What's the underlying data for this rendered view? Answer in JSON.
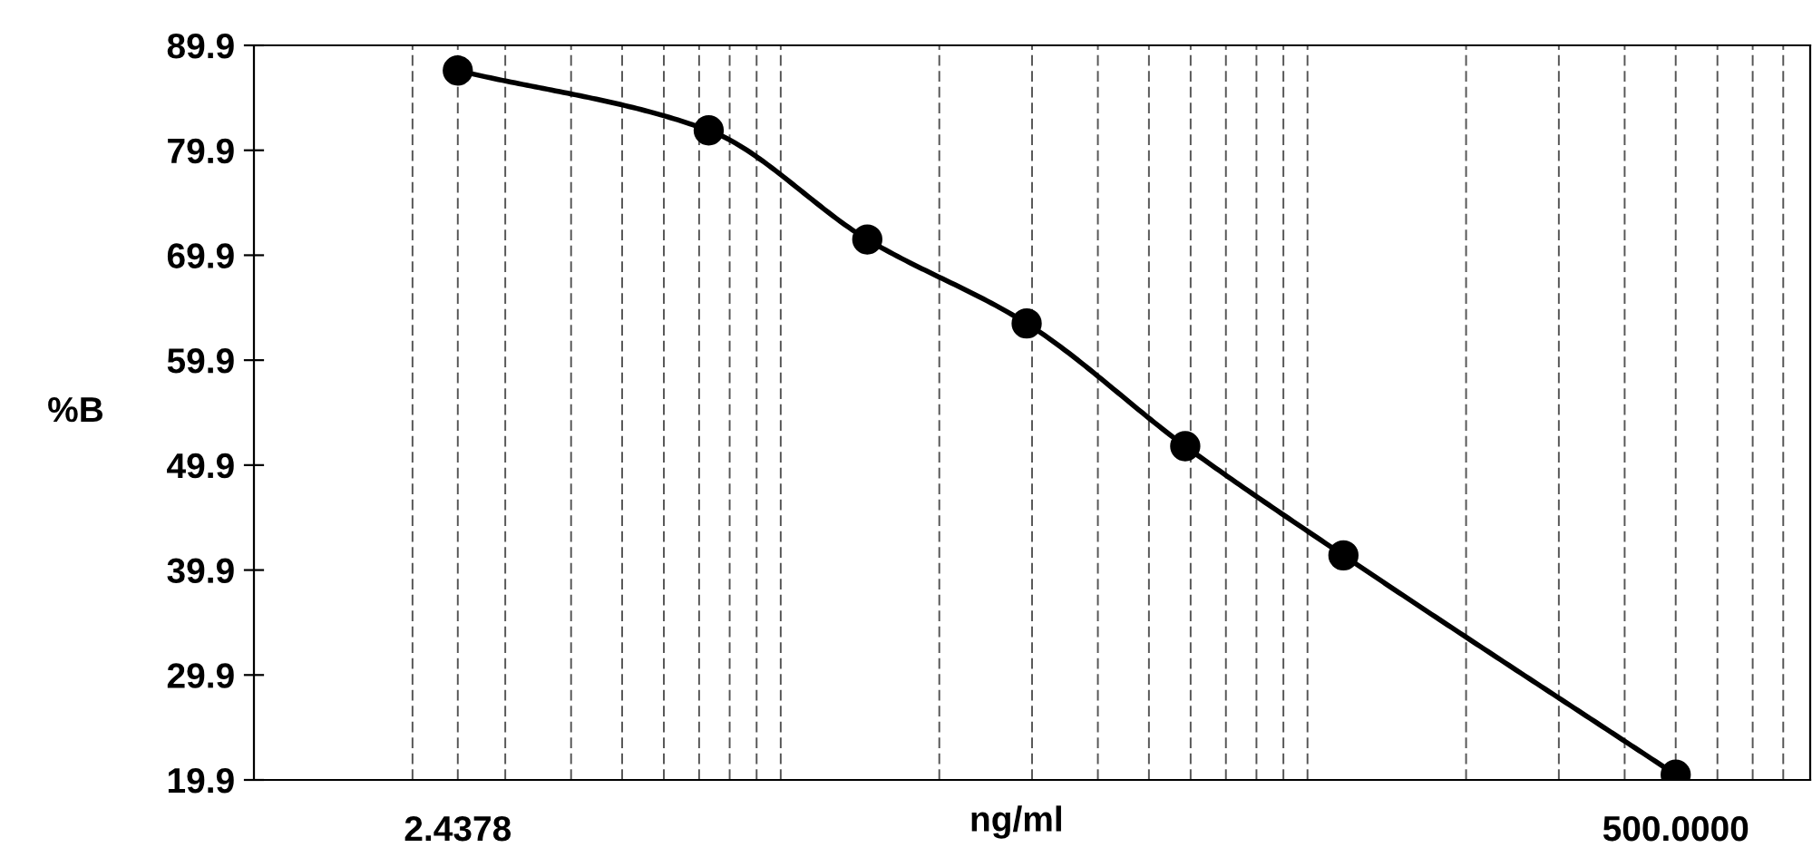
{
  "chart_data": {
    "type": "line",
    "xlabel": "ng/ml",
    "ylabel": "%B",
    "x": [
      2.4378,
      7.3,
      14.6,
      29.3,
      58.6,
      117,
      500
    ],
    "series": [
      {
        "color": "#000000",
        "values": [
          87.5,
          81.8,
          71.4,
          63.4,
          51.7,
          41.3,
          20.4
        ]
      }
    ],
    "log": "x",
    "marker": "circle",
    "line_style": "solid",
    "grid": "x",
    "legend": false,
    "xlim": [
      1,
      900
    ],
    "xticks": [
      {
        "value": 2.4378,
        "label": "2.4378"
      },
      {
        "value": 500,
        "label": "500.0000"
      },
      {
        "value": 2,
        "label": null
      },
      {
        "value": 3,
        "label": null
      },
      {
        "value": 4,
        "label": null
      },
      {
        "value": 5,
        "label": null
      },
      {
        "value": 6,
        "label": null
      },
      {
        "value": 7,
        "label": null
      },
      {
        "value": 8,
        "label": null
      },
      {
        "value": 9,
        "label": null
      },
      {
        "value": 10,
        "label": null
      },
      {
        "value": 20,
        "label": null
      },
      {
        "value": 30,
        "label": null
      },
      {
        "value": 40,
        "label": null
      },
      {
        "value": 50,
        "label": null
      },
      {
        "value": 60,
        "label": null
      },
      {
        "value": 70,
        "label": null
      },
      {
        "value": 80,
        "label": null
      },
      {
        "value": 90,
        "label": null
      },
      {
        "value": 100,
        "label": null
      },
      {
        "value": 200,
        "label": null
      },
      {
        "value": 300,
        "label": null
      },
      {
        "value": 400,
        "label": null
      },
      {
        "value": 600,
        "label": null
      },
      {
        "value": 700,
        "label": null
      },
      {
        "value": 800,
        "label": null
      }
    ],
    "ylim": [
      19.9,
      89.9
    ],
    "yticks": [
      19.9,
      29.9,
      39.9,
      49.9,
      59.9,
      69.9,
      79.9,
      89.9
    ]
  }
}
